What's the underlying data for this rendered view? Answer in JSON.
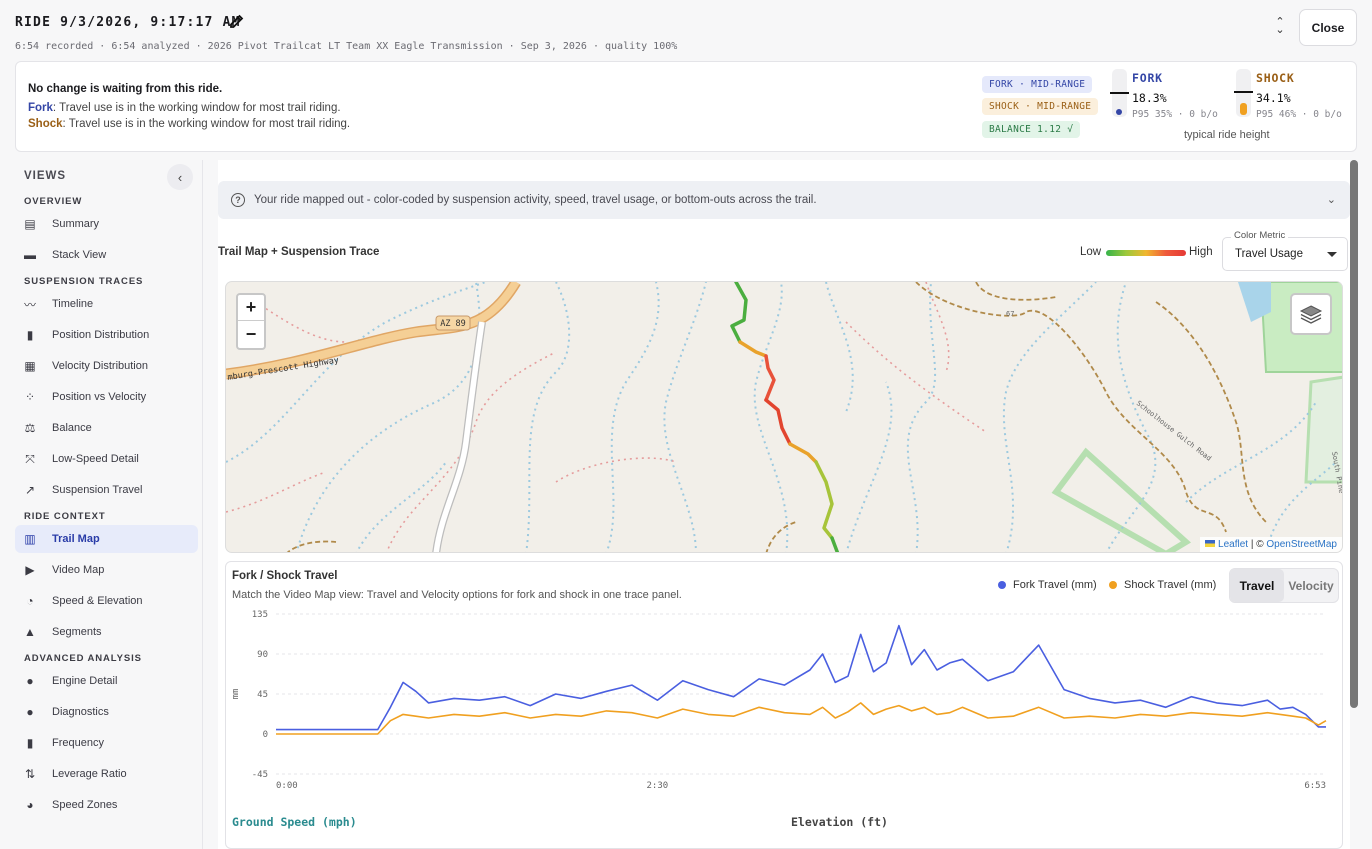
{
  "header": {
    "title": "RIDE 9/3/2026, 9:17:17 AM",
    "meta": "6:54 recorded · 6:54 analyzed · 2026 Pivot Trailcat LT Team XX Eagle Transmission · Sep 3, 2026 · quality 100%",
    "close_label": "Close"
  },
  "status": {
    "headline": "No change is waiting from this ride.",
    "fork_label": "Fork",
    "fork_text": ": Travel use is in the working window for most trail riding.",
    "shock_label": "Shock",
    "shock_text": ": Travel use is in the working window for most trail riding.",
    "fork_pill": "FORK · MID-RANGE",
    "shock_pill": "SHOCK · MID-RANGE",
    "balance_pill": "BALANCE 1.12 √",
    "fork": {
      "name": "FORK",
      "value": "18.3%",
      "sub": "P95 35% · 0 b/o",
      "ride_height": 0.183,
      "color": "#3446a6"
    },
    "shock": {
      "name": "SHOCK",
      "value": "34.1%",
      "sub": "P95 46% · 0 b/o",
      "ride_height": 0.341,
      "color": "#9a5f16"
    },
    "typical": "typical ride height"
  },
  "sidebar": {
    "title": "VIEWS",
    "sections": [
      {
        "title": "OVERVIEW",
        "items": [
          {
            "label": "Summary",
            "icon": "document-icon"
          },
          {
            "label": "Stack View",
            "icon": "stack-icon"
          }
        ]
      },
      {
        "title": "SUSPENSION TRACES",
        "items": [
          {
            "label": "Timeline",
            "icon": "trend-icon"
          },
          {
            "label": "Position Distribution",
            "icon": "bar-chart-icon"
          },
          {
            "label": "Velocity Distribution",
            "icon": "bar-chart-box-icon"
          },
          {
            "label": "Position vs Velocity",
            "icon": "scatter-icon"
          },
          {
            "label": "Balance",
            "icon": "scale-icon"
          },
          {
            "label": "Low-Speed Detail",
            "icon": "zoom-in-icon"
          },
          {
            "label": "Suspension Travel",
            "icon": "trend-up-icon"
          }
        ]
      },
      {
        "title": "RIDE CONTEXT",
        "items": [
          {
            "label": "Trail Map",
            "icon": "map-icon",
            "active": true
          },
          {
            "label": "Video Map",
            "icon": "video-icon"
          },
          {
            "label": "Speed & Elevation",
            "icon": "speedometer-icon"
          },
          {
            "label": "Segments",
            "icon": "mountain-icon"
          }
        ]
      },
      {
        "title": "ADVANCED ANALYSIS",
        "items": [
          {
            "label": "Engine Detail",
            "icon": "info-icon"
          },
          {
            "label": "Diagnostics",
            "icon": "info-icon"
          },
          {
            "label": "Frequency",
            "icon": "bar-chart-icon"
          },
          {
            "label": "Leverage Ratio",
            "icon": "sort-arrows-icon"
          },
          {
            "label": "Speed Zones",
            "icon": "pie-icon"
          }
        ]
      }
    ]
  },
  "main": {
    "info": "Your ride mapped out - color-coded by suspension activity, speed, travel usage, or bottom-outs across the trail.",
    "map_title": "Trail Map + Suspension Trace",
    "legend_low": "Low",
    "legend_high": "High",
    "metric_label": "Color Metric",
    "metric_value": "Travel Usage",
    "map": {
      "road_label": "AZ 89",
      "highway_label": "mburg-Prescott Highway",
      "attribution_leaflet": "Leaflet",
      "attribution_sep": " | © ",
      "attribution_osm": "OpenStreetMap",
      "small_labels": [
        "67",
        "Schoolhouse Gulch Road",
        "South Pine"
      ]
    },
    "chart": {
      "title": "Fork / Shock Travel",
      "subtitle": "Match the Video Map view: Travel and Velocity options for fork and shock in one trace panel.",
      "legend_fork": "Fork Travel (mm)",
      "legend_shock": "Shock Travel (mm)",
      "toggle_travel": "Travel",
      "toggle_velocity": "Velocity",
      "speed_label": "Ground Speed (mph)",
      "elev_label": "Elevation (ft)"
    }
  },
  "chart_data": {
    "type": "line",
    "title": "Fork / Shock Travel",
    "ylabel": "mm",
    "ylim": [
      -45,
      135
    ],
    "yticks": [
      "135",
      "90",
      "45",
      "0",
      "-45"
    ],
    "xticks": [
      "0:00",
      "2:30",
      "6:53"
    ],
    "x_seconds": [
      0,
      20,
      30,
      35,
      40,
      45,
      50,
      55,
      60,
      70,
      80,
      90,
      100,
      110,
      120,
      130,
      140,
      150,
      160,
      170,
      180,
      190,
      200,
      210,
      215,
      220,
      225,
      230,
      235,
      240,
      245,
      250,
      255,
      260,
      265,
      270,
      280,
      290,
      300,
      310,
      320,
      330,
      340,
      350,
      360,
      370,
      380,
      390,
      395,
      400,
      405,
      410,
      413
    ],
    "series": [
      {
        "name": "Fork Travel (mm)",
        "color": "#4a5fe0",
        "values": [
          5,
          5,
          5,
          5,
          5,
          30,
          58,
          48,
          35,
          40,
          38,
          42,
          32,
          45,
          40,
          48,
          55,
          38,
          60,
          50,
          42,
          62,
          55,
          72,
          90,
          58,
          65,
          112,
          70,
          80,
          122,
          78,
          95,
          72,
          80,
          84,
          60,
          70,
          100,
          50,
          40,
          35,
          38,
          30,
          42,
          35,
          32,
          38,
          28,
          30,
          22,
          8,
          8
        ]
      },
      {
        "name": "Shock Travel (mm)",
        "color": "#f0a020",
        "values": [
          0,
          0,
          0,
          0,
          0,
          15,
          22,
          20,
          18,
          22,
          20,
          24,
          18,
          22,
          20,
          26,
          24,
          18,
          28,
          22,
          20,
          30,
          24,
          22,
          30,
          18,
          25,
          35,
          22,
          28,
          32,
          26,
          30,
          22,
          24,
          30,
          18,
          20,
          30,
          18,
          20,
          18,
          22,
          20,
          24,
          22,
          20,
          24,
          22,
          20,
          18,
          10,
          15
        ]
      }
    ]
  }
}
